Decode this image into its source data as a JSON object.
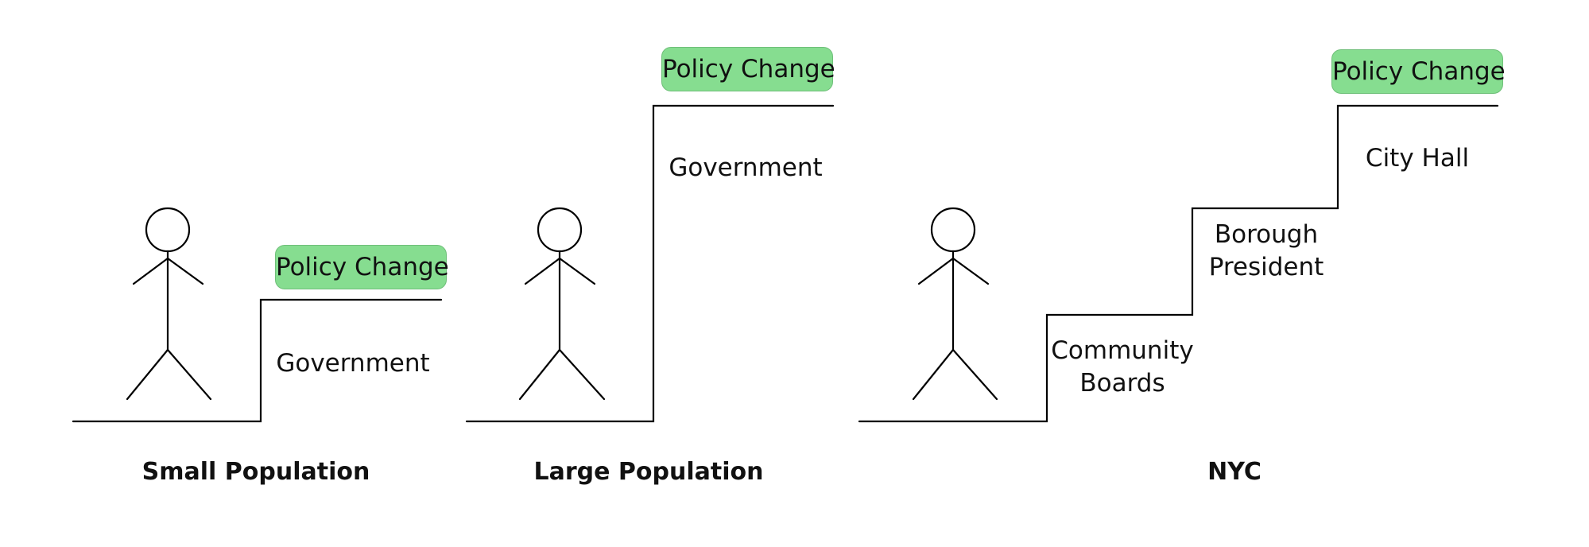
{
  "panels": [
    {
      "caption": "Small Population",
      "policy": "Policy Change",
      "steps": [
        {
          "label": "Government"
        }
      ]
    },
    {
      "caption": "Large Population",
      "policy": "Policy Change",
      "steps": [
        {
          "label": "Government"
        }
      ]
    },
    {
      "caption": "NYC",
      "policy": "Policy Change",
      "steps": [
        {
          "label_line1": "Community",
          "label_line2": "Boards"
        },
        {
          "label_line1": "Borough",
          "label_line2": "President"
        },
        {
          "label": "City Hall"
        }
      ]
    }
  ],
  "colors": {
    "badge": "#86dd90",
    "line": "#000000"
  }
}
